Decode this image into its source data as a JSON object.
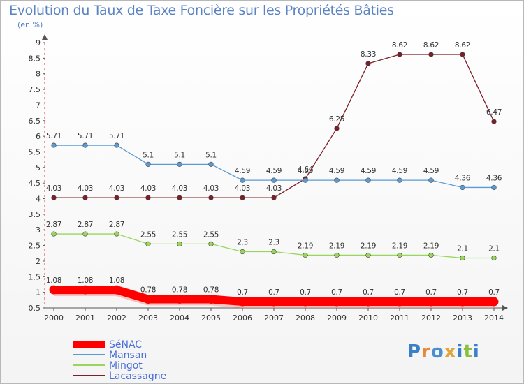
{
  "header": {
    "title": "Evolution du Taux de Taxe Foncière sur les Propriétés Bâties",
    "subtitle": "(en %)"
  },
  "logo": {
    "text": "Proxiti",
    "letters": [
      "P",
      "r",
      "o",
      "x",
      "i",
      "t",
      "i"
    ],
    "colors": [
      "#3a7fc8",
      "#e8893a",
      "#4a8fd0",
      "#e0a63a",
      "#3a7fc8",
      "#8ac040",
      "#3a7fc8"
    ]
  },
  "chart_data": {
    "type": "line",
    "title": "Evolution du Taux de Taxe Foncière sur les Propriétés Bâties",
    "ylabel": "(en %)",
    "xlabel": "",
    "ylim": [
      0.5,
      9
    ],
    "yticks": [
      "0.5",
      "1",
      "1.5",
      "2",
      "2.5",
      "3",
      "3.5",
      "4",
      "4.5",
      "5",
      "5.5",
      "6",
      "6.5",
      "7",
      "7.5",
      "8",
      "8.5",
      "9"
    ],
    "x": [
      "2000",
      "2001",
      "2002",
      "2003",
      "2004",
      "2005",
      "2006",
      "2007",
      "2008",
      "2009",
      "2010",
      "2011",
      "2012",
      "2013",
      "2014"
    ],
    "series": [
      {
        "name": "SéNAC",
        "color": "#ff0000",
        "values": [
          1.08,
          1.08,
          1.08,
          0.78,
          0.78,
          0.78,
          0.7,
          0.7,
          0.7,
          0.7,
          0.7,
          0.7,
          0.7,
          0.7,
          0.7
        ],
        "labels": [
          "1.08",
          "1.08",
          "1.08",
          "0.78",
          "0.78",
          "0.78",
          "0.7",
          "0.7",
          "0.7",
          "0.7",
          "0.7",
          "0.7",
          "0.7",
          "0.7",
          "0.7"
        ]
      },
      {
        "name": "Mansan",
        "color": "#5b9bd5",
        "values": [
          5.71,
          5.71,
          5.71,
          5.1,
          5.1,
          5.1,
          4.59,
          4.59,
          4.59,
          4.59,
          4.59,
          4.59,
          4.59,
          4.36,
          4.36
        ],
        "labels": [
          "5.71",
          "5.71",
          "5.71",
          "5.1",
          "5.1",
          "5.1",
          "4.59",
          "4.59",
          "4.59",
          "4.59",
          "4.59",
          "4.59",
          "4.59",
          "4.36",
          "4.36"
        ]
      },
      {
        "name": "Mingot",
        "color": "#9ad65c",
        "values": [
          2.87,
          2.87,
          2.87,
          2.55,
          2.55,
          2.55,
          2.3,
          2.3,
          2.19,
          2.19,
          2.19,
          2.19,
          2.19,
          2.1,
          2.1
        ],
        "labels": [
          "2.87",
          "2.87",
          "2.87",
          "2.55",
          "2.55",
          "2.55",
          "2.3",
          "2.3",
          "2.19",
          "2.19",
          "2.19",
          "2.19",
          "2.19",
          "2.1",
          "2.1"
        ]
      },
      {
        "name": "Lacassagne",
        "color": "#7a1f28",
        "values": [
          4.03,
          4.03,
          4.03,
          4.03,
          4.03,
          4.03,
          4.03,
          4.03,
          4.64,
          6.25,
          8.33,
          8.62,
          8.62,
          8.62,
          6.47
        ],
        "labels": [
          "4.03",
          "4.03",
          "4.03",
          "4.03",
          "4.03",
          "4.03",
          "4.03",
          "4.03",
          "4.64",
          "6.25",
          "8.33",
          "8.62",
          "8.62",
          "8.62",
          "6.47"
        ]
      }
    ],
    "legend": [
      "SéNAC",
      "Mansan",
      "Mingot",
      "Lacassagne"
    ],
    "legend_position": "bottom-left",
    "grid": false
  }
}
